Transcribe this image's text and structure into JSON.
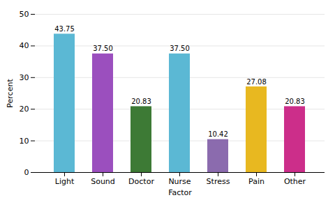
{
  "chart_data": {
    "type": "bar",
    "categories": [
      "Light",
      "Sound",
      "Doctor",
      "Nurse",
      "Stress",
      "Pain",
      "Other"
    ],
    "values": [
      43.75,
      37.5,
      20.83,
      37.5,
      10.42,
      27.08,
      20.83
    ],
    "value_labels": [
      "43.75",
      "37.50",
      "20.83",
      "37.50",
      "10.42",
      "27.08",
      "20.83"
    ],
    "colors": [
      "#5BB8D4",
      "#9B4FBE",
      "#3D7A35",
      "#5BB8D4",
      "#8B6BAE",
      "#E8B820",
      "#CC2E8A"
    ],
    "xlabel": "Factor",
    "ylabel": "Percent",
    "ylim": [
      0,
      50
    ],
    "yticks": [
      0,
      10,
      20,
      30,
      40,
      50
    ],
    "grid": true,
    "data_labels": true
  }
}
